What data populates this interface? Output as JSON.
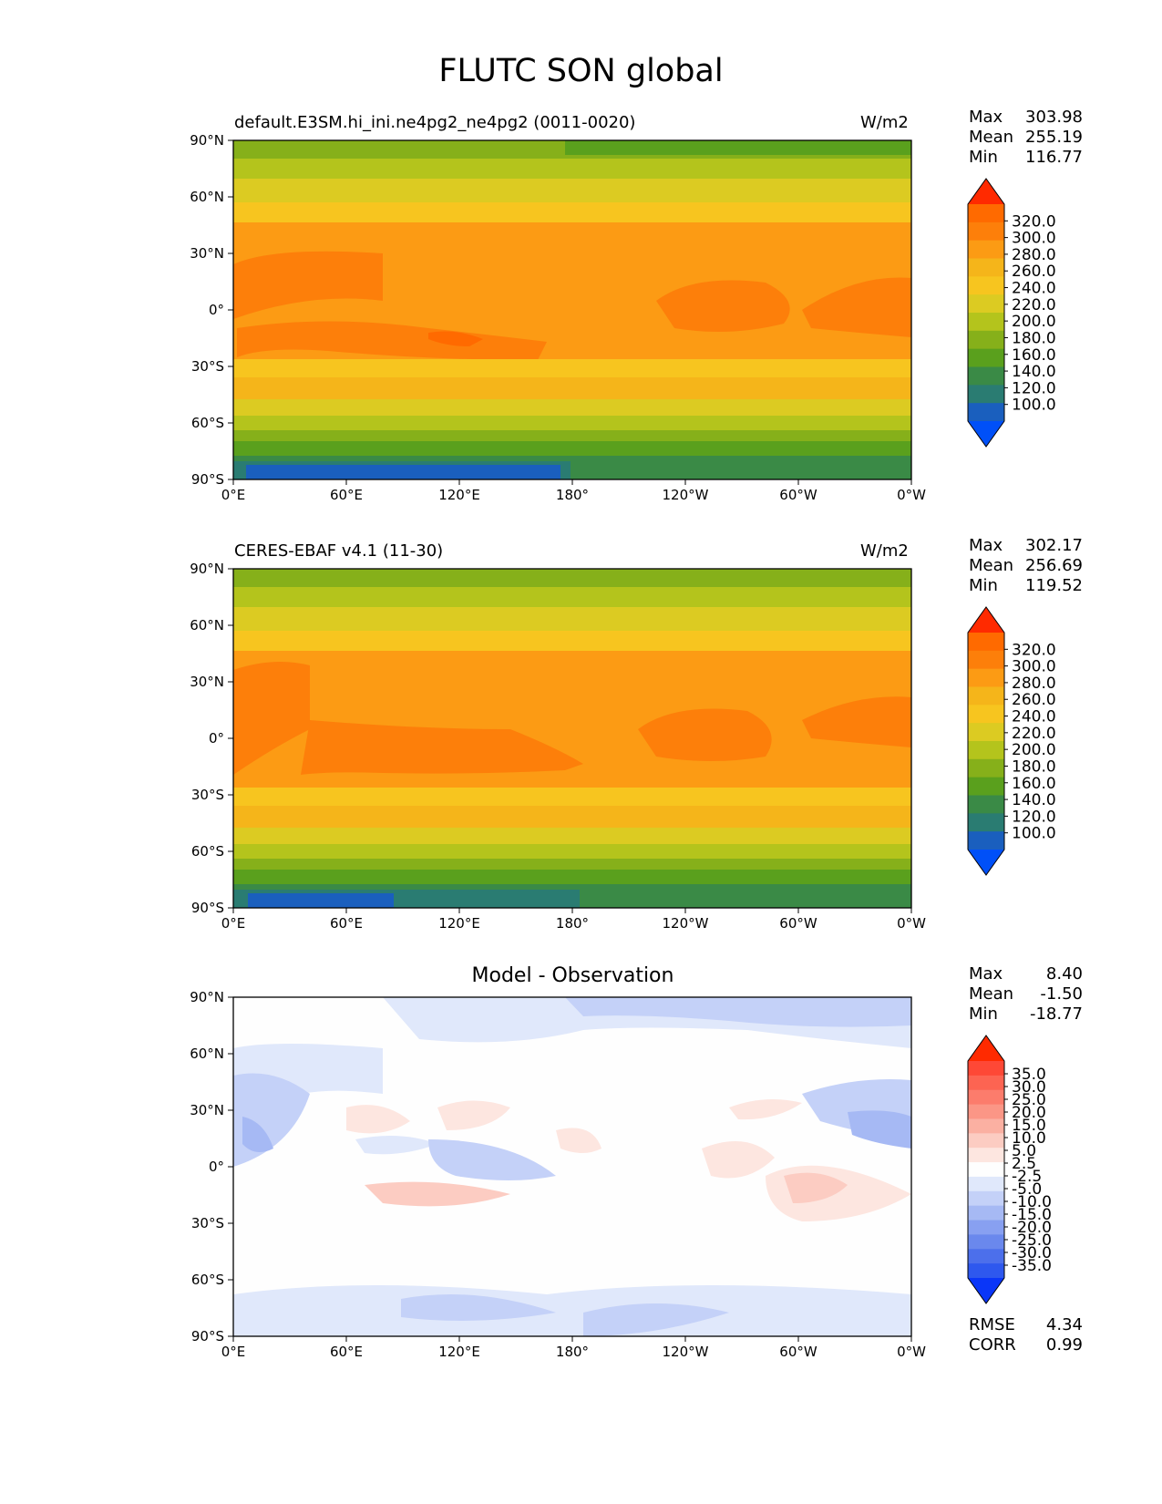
{
  "title": "FLUTC SON global",
  "lat_labels": [
    "90°N",
    "60°N",
    "30°N",
    "0°",
    "30°S",
    "60°S",
    "90°S"
  ],
  "lon_labels": [
    "0°E",
    "60°E",
    "120°E",
    "180°",
    "120°W",
    "60°W",
    "0°W"
  ],
  "stat_labels": {
    "max": "Max",
    "mean": "Mean",
    "min": "Min",
    "rmse": "RMSE",
    "corr": "CORR"
  },
  "panels": [
    {
      "id": "model",
      "title_left": "default.E3SM.hi_ini.ne4pg2_ne4pg2 (0011-0020)",
      "units": "W/m2",
      "stats": {
        "max": "303.98",
        "mean": "255.19",
        "min": "116.77"
      },
      "colorbar_ticks": [
        "320.0",
        "300.0",
        "280.0",
        "260.0",
        "240.0",
        "220.0",
        "200.0",
        "180.0",
        "160.0",
        "140.0",
        "120.0",
        "100.0"
      ]
    },
    {
      "id": "obs",
      "title_left": "CERES-EBAF v4.1 (11-30)",
      "units": "W/m2",
      "stats": {
        "max": "302.17",
        "mean": "256.69",
        "min": "119.52"
      },
      "colorbar_ticks": [
        "320.0",
        "300.0",
        "280.0",
        "260.0",
        "240.0",
        "220.0",
        "200.0",
        "180.0",
        "160.0",
        "140.0",
        "120.0",
        "100.0"
      ]
    },
    {
      "id": "diff",
      "title_center": "Model - Observation",
      "stats": {
        "max": "8.40",
        "mean": "-1.50",
        "min": "-18.77",
        "rmse": "4.34",
        "corr": "0.99"
      },
      "colorbar_ticks": [
        "35.0",
        "30.0",
        "25.0",
        "20.0",
        "15.0",
        "10.0",
        "5.0",
        "2.5",
        "-2.5",
        "-5.0",
        "-10.0",
        "-15.0",
        "-20.0",
        "-25.0",
        "-30.0",
        "-35.0"
      ]
    }
  ],
  "colors": {
    "abs_scale": [
      "#ff2a00",
      "#ff6a00",
      "#fd7f0a",
      "#fc9b14",
      "#f5b51a",
      "#f7c51f",
      "#dccb22",
      "#b4c41c",
      "#86b01a",
      "#5aa01d",
      "#3a8a46",
      "#2a7c72",
      "#1a5fbe",
      "#0050f8"
    ],
    "diff_scale": [
      "#ff2a00",
      "#fe4836",
      "#fd6452",
      "#fc7c6c",
      "#fb9686",
      "#fbb0a2",
      "#fcccc2",
      "#fde6e0",
      "#fefefe",
      "#e0e8fb",
      "#c4d1f8",
      "#a6b9f4",
      "#88a0f1",
      "#6a88ed",
      "#4c6feb",
      "#2e58ee",
      "#0a36f8"
    ]
  }
}
